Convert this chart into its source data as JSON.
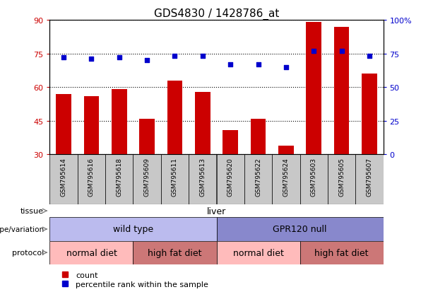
{
  "title": "GDS4830 / 1428786_at",
  "samples": [
    "GSM795614",
    "GSM795616",
    "GSM795618",
    "GSM795609",
    "GSM795611",
    "GSM795613",
    "GSM795620",
    "GSM795622",
    "GSM795624",
    "GSM795603",
    "GSM795605",
    "GSM795607"
  ],
  "counts": [
    57,
    56,
    59,
    46,
    63,
    58,
    41,
    46,
    34,
    89,
    87,
    66
  ],
  "percentile_ranks": [
    72,
    71,
    72,
    70,
    73,
    73,
    67,
    67,
    65,
    77,
    77,
    73
  ],
  "ylim_left": [
    30,
    90
  ],
  "ylim_right": [
    0,
    100
  ],
  "yticks_left": [
    30,
    45,
    60,
    75,
    90
  ],
  "yticks_right": [
    0,
    25,
    50,
    75,
    100
  ],
  "ytick_labels_right": [
    "0",
    "25",
    "50",
    "75",
    "100%"
  ],
  "bar_color": "#CC0000",
  "dot_color": "#0000CC",
  "tissue_label": "tissue",
  "tissue_value": "liver",
  "tissue_color": "#55BB55",
  "genotype_label": "genotype/variation",
  "genotype_groups": [
    {
      "label": "wild type",
      "span": [
        0,
        5
      ],
      "color": "#BBBBEE"
    },
    {
      "label": "GPR120 null",
      "span": [
        6,
        11
      ],
      "color": "#8888CC"
    }
  ],
  "protocol_label": "protocol",
  "protocol_groups": [
    {
      "label": "normal diet",
      "span": [
        0,
        2
      ],
      "color": "#FFBBBB"
    },
    {
      "label": "high fat diet",
      "span": [
        3,
        5
      ],
      "color": "#CC7777"
    },
    {
      "label": "normal diet",
      "span": [
        6,
        8
      ],
      "color": "#FFBBBB"
    },
    {
      "label": "high fat diet",
      "span": [
        9,
        11
      ],
      "color": "#CC7777"
    }
  ],
  "legend_count_color": "#CC0000",
  "legend_rank_color": "#0000CC",
  "legend_count_label": "count",
  "legend_rank_label": "percentile rank within the sample",
  "background_color": "#FFFFFF",
  "tick_area_bg": "#C8C8C8"
}
